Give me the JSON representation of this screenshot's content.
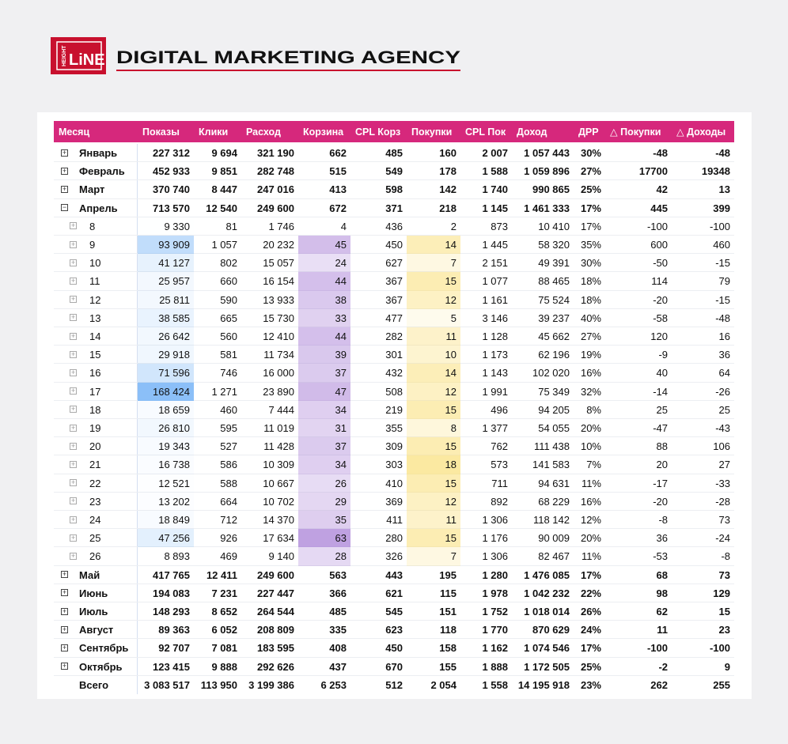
{
  "header": {
    "logo_top": "HEIGHT",
    "logo_main": "LiNE",
    "title": "DIGITAL MARKETING AGENCY"
  },
  "table": {
    "columns": [
      "Месяц",
      "Показы",
      "Клики",
      "Расход",
      "Корзина",
      "CPL Корз",
      "Покупки",
      "CPL Пок",
      "Доход",
      "ДРР",
      "△ Покупки",
      "△ Доходы"
    ],
    "rows": [
      {
        "cells": [
          "Январь",
          "227 312",
          "9 694",
          "321 190",
          "662",
          "485",
          "160",
          "2 007",
          "1 057 443",
          "30%",
          "-48",
          "-48"
        ]
      },
      {
        "cells": [
          "Февраль",
          "452 933",
          "9 851",
          "282 748",
          "515",
          "549",
          "178",
          "1 588",
          "1 059 896",
          "27%",
          "17700",
          "19348"
        ]
      },
      {
        "cells": [
          "Март",
          "370 740",
          "8 447",
          "247 016",
          "413",
          "598",
          "142",
          "1 740",
          "990 865",
          "25%",
          "42",
          "13"
        ]
      },
      {
        "cells": [
          "Апрель",
          "713 570",
          "12 540",
          "249 600",
          "672",
          "371",
          "218",
          "1 145",
          "1 461 333",
          "17%",
          "445",
          "399"
        ],
        "children": [
          {
            "cells": [
              "8",
              "9 330",
              "81",
              "1 746",
              "4",
              "436",
              "2",
              "873",
              "10 410",
              "17%",
              "-100",
              "-100"
            ]
          },
          {
            "cells": [
              "9",
              "93 909",
              "1 057",
              "20 232",
              "45",
              "450",
              "14",
              "1 445",
              "58 320",
              "35%",
              "600",
              "460"
            ]
          },
          {
            "cells": [
              "10",
              "41 127",
              "802",
              "15 057",
              "24",
              "627",
              "7",
              "2 151",
              "49 391",
              "30%",
              "-50",
              "-15"
            ]
          },
          {
            "cells": [
              "11",
              "25 957",
              "660",
              "16 154",
              "44",
              "367",
              "15",
              "1 077",
              "88 465",
              "18%",
              "114",
              "79"
            ]
          },
          {
            "cells": [
              "12",
              "25 811",
              "590",
              "13 933",
              "38",
              "367",
              "12",
              "1 161",
              "75 524",
              "18%",
              "-20",
              "-15"
            ]
          },
          {
            "cells": [
              "13",
              "38 585",
              "665",
              "15 730",
              "33",
              "477",
              "5",
              "3 146",
              "39 237",
              "40%",
              "-58",
              "-48"
            ]
          },
          {
            "cells": [
              "14",
              "26 642",
              "560",
              "12 410",
              "44",
              "282",
              "11",
              "1 128",
              "45 662",
              "27%",
              "120",
              "16"
            ]
          },
          {
            "cells": [
              "15",
              "29 918",
              "581",
              "11 734",
              "39",
              "301",
              "10",
              "1 173",
              "62 196",
              "19%",
              "-9",
              "36"
            ]
          },
          {
            "cells": [
              "16",
              "71 596",
              "746",
              "16 000",
              "37",
              "432",
              "14",
              "1 143",
              "102 020",
              "16%",
              "40",
              "64"
            ]
          },
          {
            "cells": [
              "17",
              "168 424",
              "1 271",
              "23 890",
              "47",
              "508",
              "12",
              "1 991",
              "75 349",
              "32%",
              "-14",
              "-26"
            ]
          },
          {
            "cells": [
              "18",
              "18 659",
              "460",
              "7 444",
              "34",
              "219",
              "15",
              "496",
              "94 205",
              "8%",
              "25",
              "25"
            ]
          },
          {
            "cells": [
              "19",
              "26 810",
              "595",
              "11 019",
              "31",
              "355",
              "8",
              "1 377",
              "54 055",
              "20%",
              "-47",
              "-43"
            ]
          },
          {
            "cells": [
              "20",
              "19 343",
              "527",
              "11 428",
              "37",
              "309",
              "15",
              "762",
              "111 438",
              "10%",
              "88",
              "106"
            ]
          },
          {
            "cells": [
              "21",
              "16 738",
              "586",
              "10 309",
              "34",
              "303",
              "18",
              "573",
              "141 583",
              "7%",
              "20",
              "27"
            ]
          },
          {
            "cells": [
              "22",
              "12 521",
              "588",
              "10 667",
              "26",
              "410",
              "15",
              "711",
              "94 631",
              "11%",
              "-17",
              "-33"
            ]
          },
          {
            "cells": [
              "23",
              "13 202",
              "664",
              "10 702",
              "29",
              "369",
              "12",
              "892",
              "68 229",
              "16%",
              "-20",
              "-28"
            ]
          },
          {
            "cells": [
              "24",
              "18 849",
              "712",
              "14 370",
              "35",
              "411",
              "11",
              "1 306",
              "118 142",
              "12%",
              "-8",
              "73"
            ]
          },
          {
            "cells": [
              "25",
              "47 256",
              "926",
              "17 634",
              "63",
              "280",
              "15",
              "1 176",
              "90 009",
              "20%",
              "36",
              "-24"
            ]
          },
          {
            "cells": [
              "26",
              "8 893",
              "469",
              "9 140",
              "28",
              "326",
              "7",
              "1 306",
              "82 467",
              "11%",
              "-53",
              "-8"
            ]
          }
        ]
      },
      {
        "cells": [
          "Май",
          "417 765",
          "12 411",
          "249 600",
          "563",
          "443",
          "195",
          "1 280",
          "1 476 085",
          "17%",
          "68",
          "73"
        ]
      },
      {
        "cells": [
          "Июнь",
          "194 083",
          "7 231",
          "227 447",
          "366",
          "621",
          "115",
          "1 978",
          "1 042 232",
          "22%",
          "98",
          "129"
        ]
      },
      {
        "cells": [
          "Июль",
          "148 293",
          "8 652",
          "264 544",
          "485",
          "545",
          "151",
          "1 752",
          "1 018 014",
          "26%",
          "62",
          "15"
        ]
      },
      {
        "cells": [
          "Август",
          "89 363",
          "6 052",
          "208 809",
          "335",
          "623",
          "118",
          "1 770",
          "870 629",
          "24%",
          "11",
          "23"
        ]
      },
      {
        "cells": [
          "Сентябрь",
          "92 707",
          "7 081",
          "183 595",
          "408",
          "450",
          "158",
          "1 162",
          "1 074 546",
          "17%",
          "-100",
          "-100"
        ]
      },
      {
        "cells": [
          "Октябрь",
          "123 415",
          "9 888",
          "292 626",
          "437",
          "670",
          "155",
          "1 888",
          "1 172 505",
          "25%",
          "-2",
          "9"
        ]
      }
    ],
    "total": {
      "cells": [
        "Всего",
        "3 083 517",
        "113 950",
        "3 199 386",
        "6 253",
        "512",
        "2 054",
        "1 558",
        "14 195 918",
        "23%",
        "262",
        "255"
      ]
    }
  }
}
